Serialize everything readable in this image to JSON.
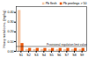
{
  "chart_data": {
    "type": "bar",
    "categories": [
      "S1",
      "S2",
      "S3",
      "S4",
      "S5",
      "S6",
      "S7",
      "S8",
      "S9"
    ],
    "series": [
      {
        "name": "Pb flesh",
        "color": "#f5c8a8",
        "values": [
          0.42,
          0.02,
          0.02,
          0.02,
          0.02,
          0.02,
          0.02,
          0.02,
          0.02
        ]
      },
      {
        "name": "Pb peelings > 50",
        "color": "#e85a10",
        "values": [
          0.08,
          0.03,
          0.03,
          0.03,
          0.03,
          0.03,
          0.03,
          0.03,
          0.03
        ]
      }
    ],
    "ylabel": "Heavy metal conc. (mg/kg)",
    "ylim": [
      0,
      0.46
    ],
    "yticks": [
      {
        "value": 0.0,
        "label": "0.00"
      },
      {
        "value": 0.1,
        "label": "0.10"
      },
      {
        "value": 0.2,
        "label": "0.20"
      },
      {
        "value": 0.3,
        "label": "0.30"
      },
      {
        "value": 0.4,
        "label": "0.40"
      }
    ],
    "grid": false,
    "legend": "upper right",
    "annotations": [
      {
        "y": 0.05,
        "text": "Provisional regulation limit value",
        "color": "#222222"
      }
    ]
  }
}
